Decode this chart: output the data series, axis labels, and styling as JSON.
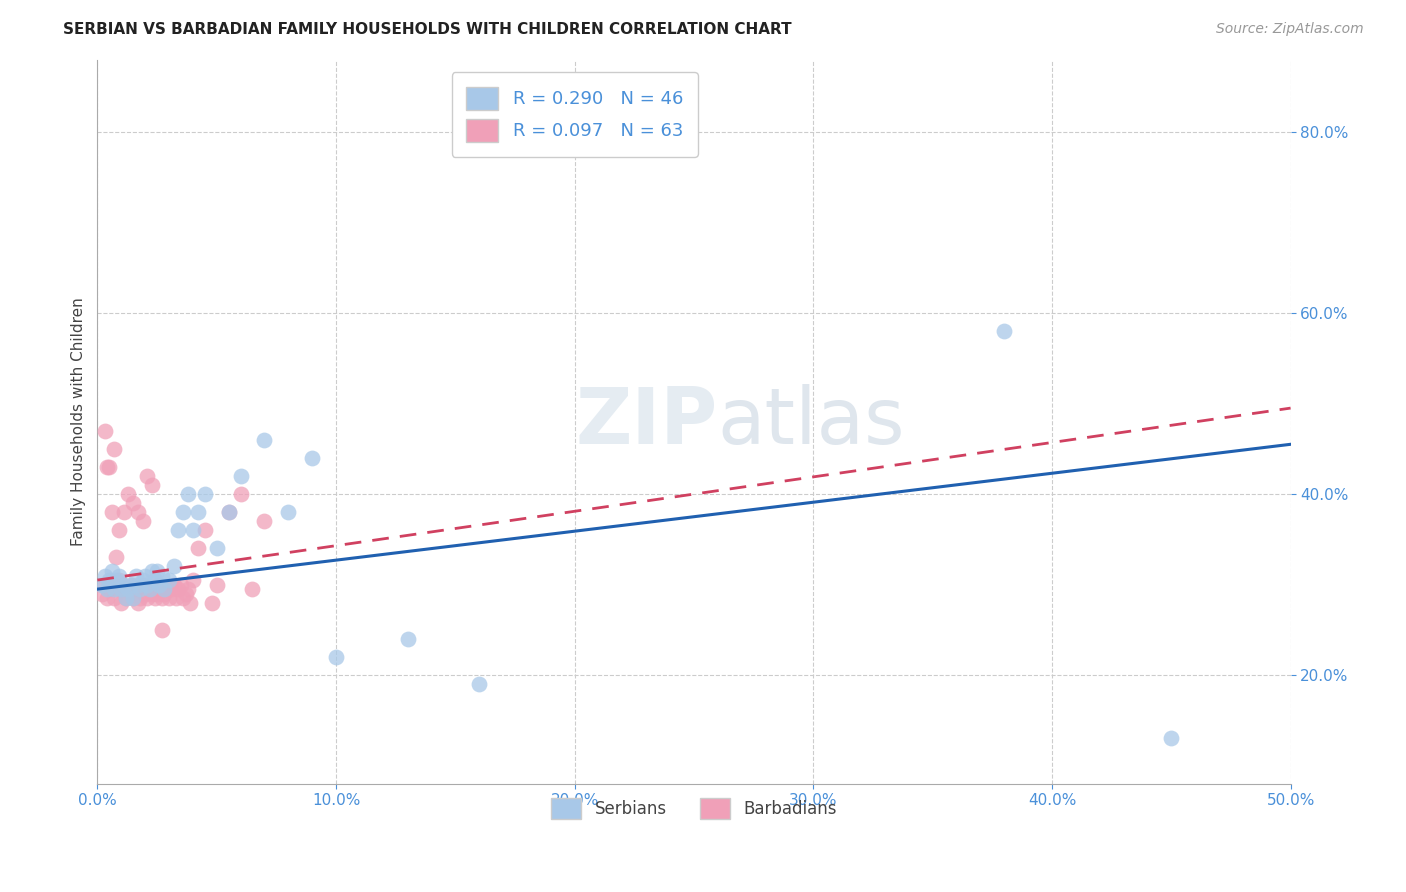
{
  "title": "SERBIAN VS BARBADIAN FAMILY HOUSEHOLDS WITH CHILDREN CORRELATION CHART",
  "source": "Source: ZipAtlas.com",
  "ylabel": "Family Households with Children",
  "xlim": [
    0.0,
    0.5
  ],
  "ylim": [
    0.08,
    0.88
  ],
  "serbian_R": 0.29,
  "serbian_N": 46,
  "barbadian_R": 0.097,
  "barbadian_N": 63,
  "serbian_color": "#a8c8e8",
  "barbadian_color": "#f0a0b8",
  "serbian_line_color": "#2060b0",
  "barbadian_line_color": "#d04060",
  "watermark_zip": "ZIP",
  "watermark_atlas": "atlas",
  "serbian_x": [
    0.002,
    0.003,
    0.004,
    0.005,
    0.006,
    0.007,
    0.008,
    0.009,
    0.01,
    0.011,
    0.012,
    0.013,
    0.014,
    0.015,
    0.016,
    0.017,
    0.018,
    0.019,
    0.02,
    0.021,
    0.022,
    0.023,
    0.024,
    0.025,
    0.026,
    0.027,
    0.028,
    0.03,
    0.032,
    0.034,
    0.036,
    0.038,
    0.04,
    0.042,
    0.045,
    0.05,
    0.055,
    0.06,
    0.07,
    0.08,
    0.09,
    0.1,
    0.13,
    0.16,
    0.38,
    0.45
  ],
  "serbian_y": [
    0.3,
    0.31,
    0.295,
    0.305,
    0.315,
    0.295,
    0.305,
    0.31,
    0.295,
    0.3,
    0.285,
    0.295,
    0.3,
    0.285,
    0.31,
    0.3,
    0.295,
    0.305,
    0.31,
    0.3,
    0.295,
    0.315,
    0.305,
    0.315,
    0.3,
    0.31,
    0.295,
    0.305,
    0.32,
    0.36,
    0.38,
    0.4,
    0.36,
    0.38,
    0.4,
    0.34,
    0.38,
    0.42,
    0.46,
    0.38,
    0.44,
    0.22,
    0.24,
    0.19,
    0.58,
    0.13
  ],
  "barbadian_x": [
    0.002,
    0.003,
    0.004,
    0.005,
    0.006,
    0.007,
    0.008,
    0.009,
    0.01,
    0.011,
    0.012,
    0.013,
    0.014,
    0.015,
    0.016,
    0.017,
    0.018,
    0.019,
    0.02,
    0.021,
    0.022,
    0.023,
    0.024,
    0.025,
    0.026,
    0.027,
    0.028,
    0.029,
    0.03,
    0.031,
    0.032,
    0.033,
    0.034,
    0.035,
    0.036,
    0.037,
    0.038,
    0.039,
    0.04,
    0.042,
    0.045,
    0.048,
    0.05,
    0.055,
    0.06,
    0.065,
    0.07,
    0.005,
    0.007,
    0.009,
    0.011,
    0.013,
    0.015,
    0.017,
    0.019,
    0.021,
    0.023,
    0.025,
    0.027,
    0.003,
    0.004,
    0.006,
    0.008
  ],
  "barbadian_y": [
    0.29,
    0.3,
    0.285,
    0.295,
    0.3,
    0.285,
    0.295,
    0.305,
    0.28,
    0.295,
    0.285,
    0.295,
    0.3,
    0.285,
    0.295,
    0.28,
    0.285,
    0.3,
    0.29,
    0.285,
    0.295,
    0.29,
    0.285,
    0.3,
    0.295,
    0.285,
    0.29,
    0.295,
    0.285,
    0.295,
    0.3,
    0.285,
    0.295,
    0.3,
    0.285,
    0.29,
    0.295,
    0.28,
    0.305,
    0.34,
    0.36,
    0.28,
    0.3,
    0.38,
    0.4,
    0.295,
    0.37,
    0.43,
    0.45,
    0.36,
    0.38,
    0.4,
    0.39,
    0.38,
    0.37,
    0.42,
    0.41,
    0.29,
    0.25,
    0.47,
    0.43,
    0.38,
    0.33
  ]
}
